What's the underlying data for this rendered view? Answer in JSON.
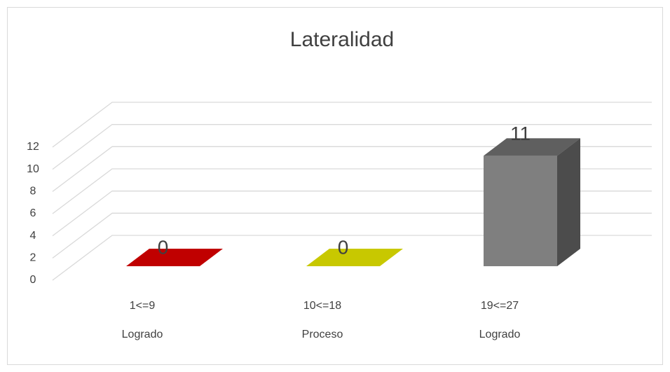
{
  "chart_data": {
    "type": "bar3d",
    "title": "Lateralidad",
    "categories": [
      "1<=9",
      "10<=18",
      "19<=27"
    ],
    "category_groups": [
      "Logrado",
      "Proceso",
      "Logrado"
    ],
    "values": [
      0,
      0,
      11
    ],
    "colors": [
      "#c00000",
      "#c8c800",
      "#7f7f7f"
    ],
    "ylim": [
      0,
      12
    ],
    "yticks": [
      0,
      2,
      4,
      6,
      8,
      10,
      12
    ],
    "grid": true
  }
}
